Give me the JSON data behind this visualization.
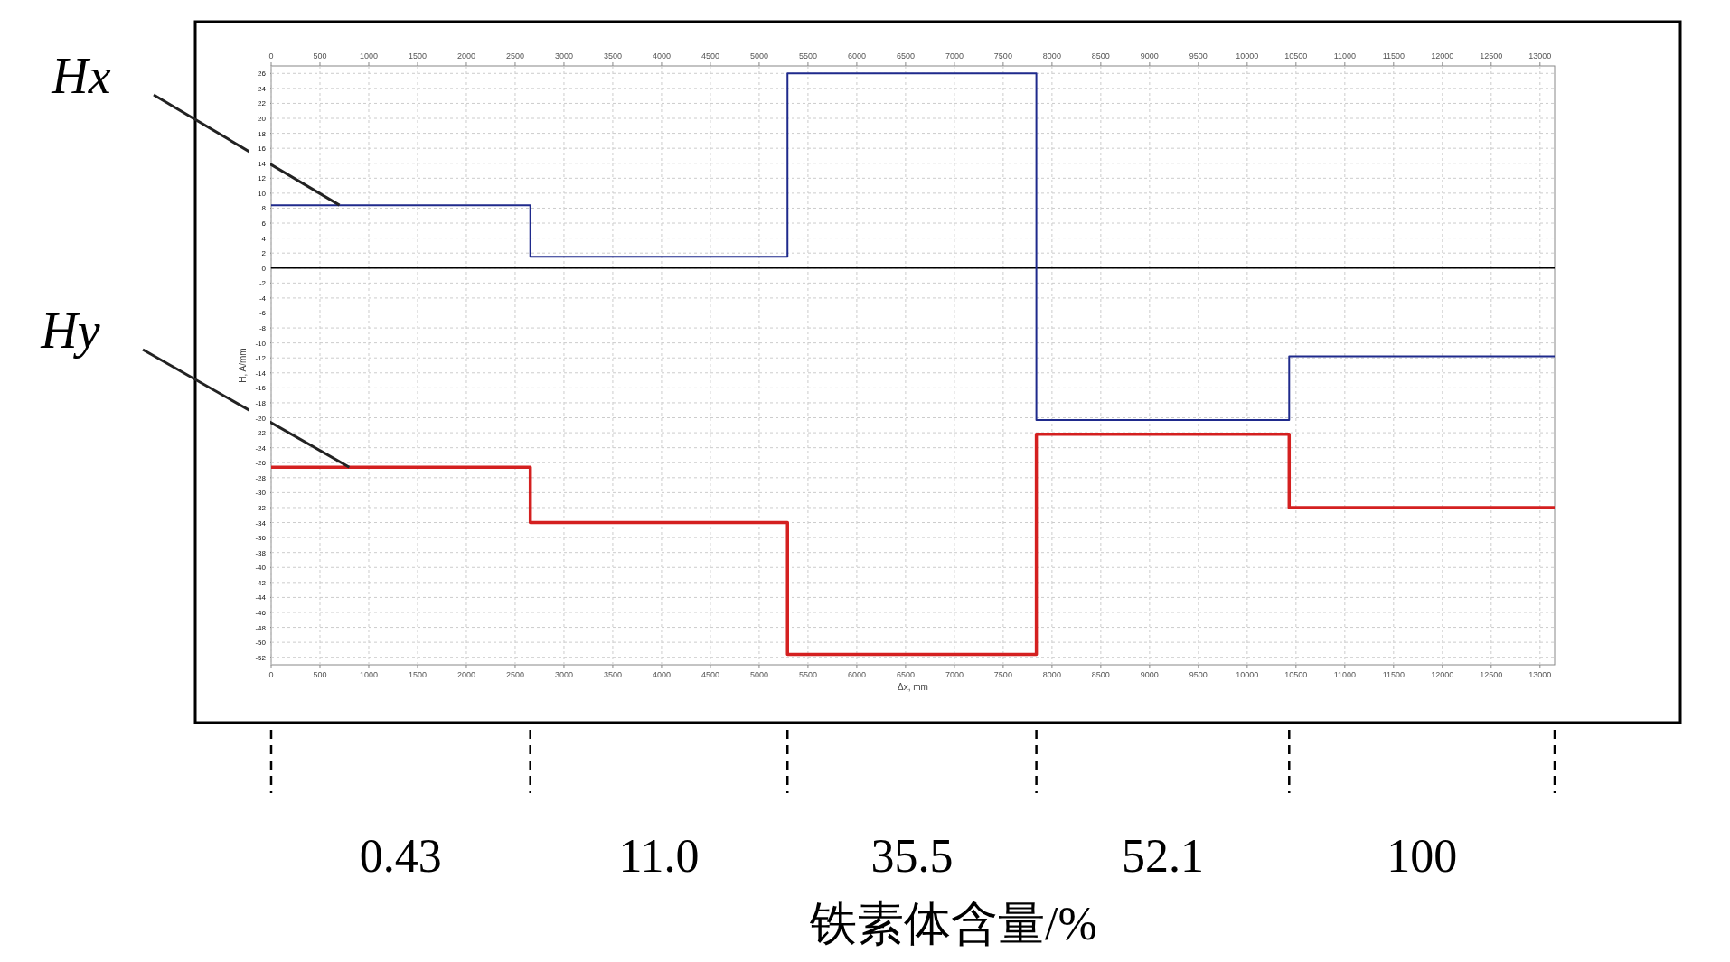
{
  "chart_data": {
    "type": "step",
    "xlabel": "Δx, mm",
    "ylabel": "H, A/mm",
    "series": [
      {
        "color": "#1f2a8c",
        "x": [
          0,
          2655,
          5290,
          7840,
          10430,
          13150
        ],
        "values": [
          8.4,
          1.5,
          26,
          -20.3,
          -11.8,
          -11.8
        ]
      },
      {
        "color": "#d42020",
        "x": [
          0,
          2655,
          5290,
          7840,
          10430,
          13150
        ],
        "values": [
          -26.6,
          -34,
          -51.6,
          -22.2,
          -32,
          -32
        ]
      }
    ],
    "xlim": [
      0,
      13150
    ],
    "xticks": [
      0,
      500,
      1000,
      1500,
      2000,
      2500,
      3000,
      3500,
      4000,
      4500,
      5000,
      5500,
      6000,
      6500,
      7000,
      7500,
      8000,
      8500,
      9000,
      9500,
      10000,
      10500,
      11000,
      11500,
      12000,
      12500,
      13000
    ],
    "x2lim": [
      0,
      13150
    ],
    "x2ticks": [
      0,
      500,
      1000,
      1500,
      2000,
      2500,
      3000,
      3500,
      4000,
      4500,
      5000,
      5500,
      6000,
      6500,
      7000,
      7500,
      8000,
      8500,
      9000,
      9500,
      10000,
      10500,
      11000,
      11500,
      12000,
      12500,
      13000
    ],
    "ylim": [
      -53,
      27
    ],
    "yticks": [
      -52,
      -50,
      -48,
      -46,
      -44,
      -42,
      -40,
      -38,
      -36,
      -34,
      -32,
      -30,
      -28,
      -26,
      -24,
      -22,
      -20,
      -18,
      -16,
      -14,
      -12,
      -10,
      -8,
      -6,
      -4,
      -2,
      0,
      2,
      4,
      6,
      8,
      10,
      12,
      14,
      16,
      18,
      20,
      22,
      24,
      26
    ],
    "grid": true,
    "ref_lines": [
      {
        "axis": "y",
        "value": 0,
        "color": "#000000"
      }
    ],
    "annotations": [
      "0.43",
      "11.0",
      "35.5",
      "52.1",
      "100",
      {
        "text": "Hx",
        "x": 700,
        "y": 8.4
      },
      {
        "text": "Hy",
        "x": 800,
        "y": -26.6
      },
      "铁素体含量/%"
    ]
  }
}
